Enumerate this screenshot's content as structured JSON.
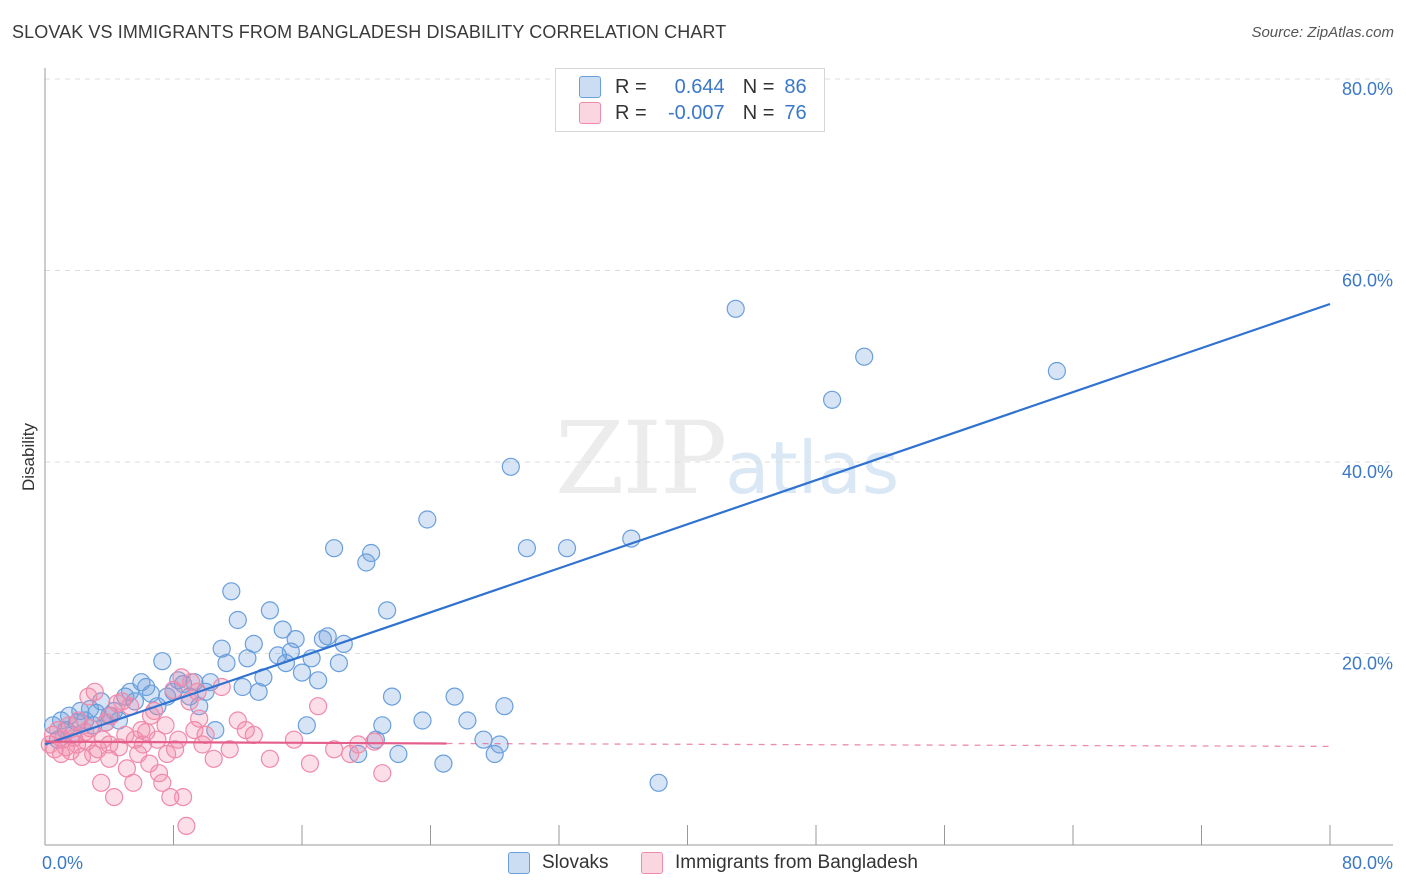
{
  "header": {
    "title": "SLOVAK VS IMMIGRANTS FROM BANGLADESH DISABILITY CORRELATION CHART",
    "source": "Source: ZipAtlas.com"
  },
  "watermark": {
    "zip": "ZIP",
    "atlas": "atlas"
  },
  "legend": {
    "rows": [
      {
        "r_label": "R =",
        "r_value": "0.644",
        "n_label": "N =",
        "n_value": "86"
      },
      {
        "r_label": "R =",
        "r_value": "-0.007",
        "n_label": "N =",
        "n_value": "76"
      }
    ]
  },
  "bottom_legend": {
    "items": [
      {
        "label": "Slovaks"
      },
      {
        "label": "Immigrants from Bangladesh"
      }
    ]
  },
  "chart_data": {
    "type": "scatter",
    "title": "SLOVAK VS IMMIGRANTS FROM BANGLADESH DISABILITY CORRELATION CHART",
    "xlabel": "",
    "ylabel": "Disability",
    "xlim": [
      0,
      80
    ],
    "ylim": [
      0,
      80
    ],
    "x_tick_labels": [
      "0.0%",
      "80.0%"
    ],
    "y_ticks": [
      20,
      40,
      60,
      80
    ],
    "y_tick_labels": [
      "20.0%",
      "40.0%",
      "60.0%",
      "80.0%"
    ],
    "grid": true,
    "legend_position": "top-center",
    "colors": {
      "Slovaks": "#6a9fdc",
      "Immigrants from Bangladesh": "#f08aaa",
      "Slovaks_line": "#2f72d0",
      "Immigrants from Bangladesh_line": "#e45e8c"
    },
    "series": [
      {
        "name": "Slovaks",
        "r": 0.644,
        "n": 86,
        "trend": {
          "x": [
            0,
            80
          ],
          "y": [
            10.5,
            56.5
          ],
          "style": "solid"
        },
        "points": [
          [
            0.5,
            12.5
          ],
          [
            0.8,
            11
          ],
          [
            1.0,
            13
          ],
          [
            1.3,
            12
          ],
          [
            1.5,
            13.5
          ],
          [
            1.7,
            11.5
          ],
          [
            2.0,
            12.8
          ],
          [
            2.2,
            14
          ],
          [
            2.5,
            13
          ],
          [
            2.8,
            14.2
          ],
          [
            3.0,
            12.5
          ],
          [
            3.2,
            13.8
          ],
          [
            3.5,
            15
          ],
          [
            3.8,
            12.8
          ],
          [
            4.0,
            13.5
          ],
          [
            4.3,
            14
          ],
          [
            4.6,
            13
          ],
          [
            5.0,
            15.5
          ],
          [
            5.3,
            16
          ],
          [
            5.6,
            15
          ],
          [
            6.0,
            17
          ],
          [
            6.3,
            16.5
          ],
          [
            6.6,
            15.8
          ],
          [
            7.0,
            14.5
          ],
          [
            7.3,
            19.2
          ],
          [
            7.6,
            15.5
          ],
          [
            8.0,
            16
          ],
          [
            8.3,
            17.2
          ],
          [
            8.6,
            16.8
          ],
          [
            9.0,
            15.5
          ],
          [
            9.3,
            17
          ],
          [
            9.6,
            14.5
          ],
          [
            10.0,
            16
          ],
          [
            10.3,
            17
          ],
          [
            10.6,
            12
          ],
          [
            11.0,
            20.5
          ],
          [
            11.3,
            19
          ],
          [
            11.6,
            26.5
          ],
          [
            12.0,
            23.5
          ],
          [
            12.3,
            16.5
          ],
          [
            12.6,
            19.5
          ],
          [
            13.0,
            21
          ],
          [
            13.3,
            16
          ],
          [
            13.6,
            17.5
          ],
          [
            14.0,
            24.5
          ],
          [
            14.5,
            19.8
          ],
          [
            14.8,
            22.5
          ],
          [
            15.0,
            19
          ],
          [
            15.3,
            20.2
          ],
          [
            15.6,
            21.5
          ],
          [
            16.0,
            18
          ],
          [
            16.3,
            12.5
          ],
          [
            16.6,
            19.5
          ],
          [
            17.0,
            17.2
          ],
          [
            17.3,
            21.5
          ],
          [
            17.6,
            21.8
          ],
          [
            18.0,
            31
          ],
          [
            18.3,
            19
          ],
          [
            18.6,
            21
          ],
          [
            19.5,
            9.5
          ],
          [
            20.0,
            29.5
          ],
          [
            20.3,
            30.5
          ],
          [
            20.6,
            11
          ],
          [
            21.0,
            12.5
          ],
          [
            21.3,
            24.5
          ],
          [
            21.6,
            15.5
          ],
          [
            22.0,
            9.5
          ],
          [
            23.5,
            13
          ],
          [
            23.8,
            34
          ],
          [
            24.8,
            8.5
          ],
          [
            25.5,
            15.5
          ],
          [
            26.3,
            13
          ],
          [
            27.3,
            11
          ],
          [
            28.0,
            9.5
          ],
          [
            28.3,
            10.5
          ],
          [
            28.6,
            14.5
          ],
          [
            29.0,
            39.5
          ],
          [
            30.0,
            31
          ],
          [
            32.5,
            31
          ],
          [
            36.5,
            32
          ],
          [
            38.2,
            6.5
          ],
          [
            38.0,
            78
          ],
          [
            43.0,
            56
          ],
          [
            49.0,
            46.5
          ],
          [
            51.0,
            51
          ],
          [
            63.0,
            49.5
          ]
        ]
      },
      {
        "name": "Immigrants from Bangladesh",
        "r": -0.007,
        "n": 76,
        "trend": {
          "x": [
            0,
            25
          ],
          "y": [
            10.8,
            10.6
          ],
          "style": "solid",
          "extension": {
            "x": [
              25,
              80
            ],
            "y": [
              10.6,
              10.3
            ],
            "style": "dashed"
          }
        },
        "points": [
          [
            0.3,
            10.5
          ],
          [
            0.5,
            11.5
          ],
          [
            0.6,
            10
          ],
          [
            0.8,
            12
          ],
          [
            1.0,
            9.5
          ],
          [
            1.1,
            11
          ],
          [
            1.3,
            10.2
          ],
          [
            1.5,
            12.5
          ],
          [
            1.6,
            9.8
          ],
          [
            1.8,
            11.2
          ],
          [
            2.0,
            10.5
          ],
          [
            2.1,
            13
          ],
          [
            2.3,
            9.2
          ],
          [
            2.5,
            11.8
          ],
          [
            2.6,
            10.8
          ],
          [
            2.8,
            12.2
          ],
          [
            3.0,
            9.5
          ],
          [
            3.1,
            16
          ],
          [
            3.3,
            10
          ],
          [
            3.5,
            6.5
          ],
          [
            3.6,
            11
          ],
          [
            3.8,
            12.8
          ],
          [
            4.0,
            10.5
          ],
          [
            4.1,
            13.5
          ],
          [
            4.3,
            5
          ],
          [
            4.5,
            14.8
          ],
          [
            4.6,
            10.2
          ],
          [
            4.8,
            15
          ],
          [
            5.0,
            11.5
          ],
          [
            5.1,
            8
          ],
          [
            5.3,
            14.5
          ],
          [
            5.5,
            6.5
          ],
          [
            5.6,
            11
          ],
          [
            5.8,
            9.5
          ],
          [
            6.0,
            12
          ],
          [
            6.1,
            10.5
          ],
          [
            6.3,
            11.8
          ],
          [
            6.5,
            8.5
          ],
          [
            6.6,
            13.5
          ],
          [
            6.8,
            14
          ],
          [
            7.0,
            11
          ],
          [
            7.1,
            7.5
          ],
          [
            7.3,
            6.5
          ],
          [
            7.5,
            12.5
          ],
          [
            7.6,
            9.5
          ],
          [
            7.8,
            5
          ],
          [
            8.0,
            16.2
          ],
          [
            8.1,
            10
          ],
          [
            8.3,
            11
          ],
          [
            8.5,
            17.5
          ],
          [
            8.6,
            5
          ],
          [
            8.8,
            2
          ],
          [
            9.0,
            15
          ],
          [
            9.1,
            17
          ],
          [
            9.3,
            12
          ],
          [
            9.5,
            16
          ],
          [
            9.6,
            13.2
          ],
          [
            9.8,
            10.5
          ],
          [
            10.0,
            11.5
          ],
          [
            10.5,
            9
          ],
          [
            11.0,
            16.5
          ],
          [
            11.5,
            10
          ],
          [
            12.0,
            13
          ],
          [
            12.5,
            12
          ],
          [
            13.0,
            11.5
          ],
          [
            14.0,
            9
          ],
          [
            15.5,
            11
          ],
          [
            16.5,
            8.5
          ],
          [
            17.0,
            14.5
          ],
          [
            18.0,
            10
          ],
          [
            19.0,
            9.5
          ],
          [
            19.5,
            10.5
          ],
          [
            20.5,
            10.8
          ],
          [
            21.0,
            7.5
          ],
          [
            4.0,
            9
          ],
          [
            2.7,
            15.5
          ]
        ]
      }
    ]
  }
}
